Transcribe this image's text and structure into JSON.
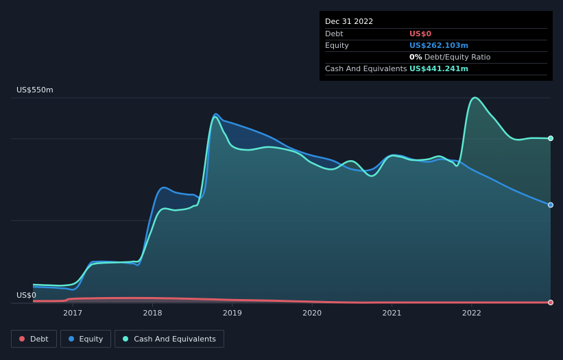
{
  "chart_data": {
    "type": "area",
    "title": "",
    "ylabel_top": "US$550m",
    "ylabel_bottom": "US$0",
    "ylim": [
      0,
      550
    ],
    "x_ticks": [
      "2017",
      "2018",
      "2019",
      "2020",
      "2021",
      "2022"
    ],
    "x_tick_values": [
      2017.0,
      2018.0,
      2019.0,
      2020.0,
      2021.0,
      2022.0
    ],
    "xlim": [
      2016.5,
      2022.99
    ],
    "series": [
      {
        "name": "Equity",
        "color": "#2f8ee0",
        "x": [
          2016.5,
          2016.75,
          2016.9,
          2017.05,
          2017.2,
          2017.3,
          2017.6,
          2017.75,
          2017.85,
          2017.97,
          2018.1,
          2018.3,
          2018.5,
          2018.65,
          2018.75,
          2018.9,
          2019.1,
          2019.3,
          2019.5,
          2019.7,
          2019.85,
          2020.0,
          2020.25,
          2020.5,
          2020.75,
          2020.95,
          2021.1,
          2021.25,
          2021.45,
          2021.6,
          2021.75,
          2021.85,
          2022.0,
          2022.25,
          2022.5,
          2022.75,
          2022.99
        ],
        "values": [
          42,
          40,
          38,
          40,
          100,
          110,
          108,
          105,
          112,
          225,
          305,
          295,
          290,
          300,
          492,
          488,
          475,
          460,
          442,
          418,
          405,
          395,
          382,
          358,
          358,
          392,
          395,
          385,
          378,
          385,
          382,
          378,
          358,
          332,
          305,
          282,
          262.103
        ]
      },
      {
        "name": "Cash And Equivalents",
        "color": "#5ce8d2",
        "x": [
          2016.5,
          2016.75,
          2016.9,
          2017.05,
          2017.2,
          2017.3,
          2017.6,
          2017.75,
          2017.85,
          2017.97,
          2018.1,
          2018.3,
          2018.5,
          2018.6,
          2018.75,
          2018.9,
          2019.0,
          2019.2,
          2019.45,
          2019.7,
          2019.85,
          2020.0,
          2020.25,
          2020.5,
          2020.75,
          2020.95,
          2021.1,
          2021.25,
          2021.45,
          2021.6,
          2021.75,
          2021.85,
          2022.0,
          2022.25,
          2022.5,
          2022.75,
          2022.99
        ],
        "values": [
          48,
          46,
          46,
          55,
          95,
          105,
          108,
          110,
          118,
          185,
          248,
          248,
          258,
          290,
          490,
          455,
          420,
          410,
          418,
          410,
          398,
          375,
          358,
          380,
          340,
          390,
          392,
          383,
          385,
          393,
          378,
          382,
          545,
          502,
          442,
          442,
          441.241
        ]
      },
      {
        "name": "Debt",
        "color": "#e05c66",
        "x": [
          2016.5,
          2016.75,
          2016.9,
          2017.0,
          2017.5,
          2018.0,
          2018.5,
          2019.0,
          2019.5,
          2020.0,
          2020.5,
          2021.0,
          2021.5,
          2022.0,
          2022.5,
          2022.99
        ],
        "values": [
          4,
          4,
          5,
          10,
          12,
          12,
          10,
          7,
          5,
          2,
          0,
          0,
          0,
          0,
          0,
          0
        ]
      }
    ],
    "legend": [
      "Debt",
      "Equity",
      "Cash And Equivalents"
    ],
    "legend_placement": "bottom-left"
  },
  "tooltip": {
    "date": "Dec 31 2022",
    "debt_label": "Debt",
    "debt_value": "US$0",
    "equity_label": "Equity",
    "equity_value": "US$262.103m",
    "ratio_value": "0%",
    "ratio_label": "Debt/Equity Ratio",
    "cash_label": "Cash And Equivalents",
    "cash_value": "US$441.241m"
  },
  "legend": {
    "debt": "Debt",
    "equity": "Equity",
    "cash": "Cash And Equivalents"
  },
  "colors": {
    "debt": "#e05c66",
    "equity": "#2f8ee0",
    "cash": "#5ce8d2",
    "background": "#151b27"
  }
}
